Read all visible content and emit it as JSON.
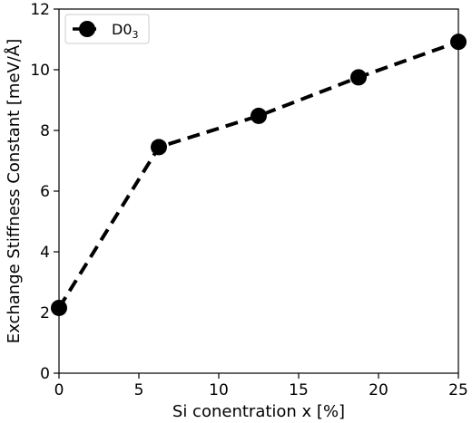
{
  "chart_data": {
    "type": "line",
    "xlabel": "Si conentration x [%]",
    "ylabel": "Exchange Stiffness Constant [meV/Å]",
    "xlim": [
      0,
      25
    ],
    "ylim": [
      0,
      12
    ],
    "xticks": [
      0,
      5,
      10,
      15,
      20,
      25
    ],
    "yticks": [
      0,
      2,
      4,
      6,
      8,
      10,
      12
    ],
    "grid": false,
    "legend_position": "top-left",
    "series": [
      {
        "name": "D0",
        "name_subscript": "3",
        "color": "#000000",
        "line_style": "dashed",
        "marker": "circle",
        "x": [
          0,
          6.25,
          12.5,
          18.75,
          25
        ],
        "y": [
          2.15,
          7.45,
          8.48,
          9.75,
          10.92
        ]
      }
    ]
  }
}
